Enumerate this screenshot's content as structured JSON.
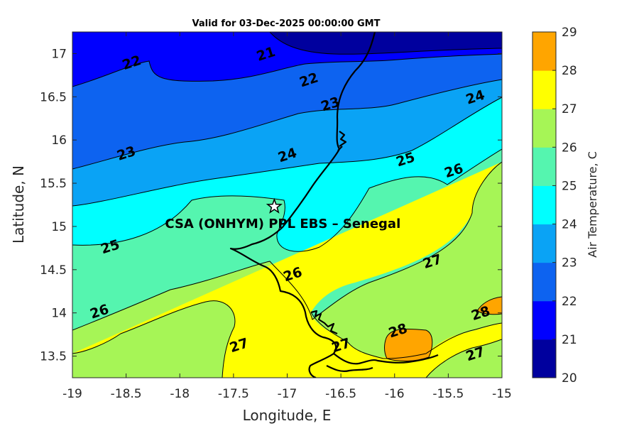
{
  "chart_data": {
    "type": "filled-contour-map",
    "title": "Valid for 03-Dec-2025 00:00:00 GMT",
    "xlabel": "Longitude, E",
    "ylabel": "Latitude, N",
    "xlim": [
      -19,
      -15
    ],
    "ylim": [
      13.25,
      17.25
    ],
    "x_ticks": [
      "-19",
      "-18.5",
      "-18",
      "-17.5",
      "-17",
      "-16.5",
      "-16",
      "-15.5",
      "-15"
    ],
    "y_ticks": [
      "17",
      "16.5",
      "16",
      "15.5",
      "15",
      "14.5",
      "14",
      "13.5"
    ],
    "x_tick_values": [
      -19,
      -18.5,
      -18,
      -17.5,
      -17,
      -16.5,
      -16,
      -15.5,
      -15
    ],
    "y_tick_values": [
      17,
      16.5,
      16,
      15.5,
      15,
      14.5,
      14,
      13.5
    ],
    "colorbar": {
      "label": "Air Temperature, C",
      "levels": [
        20,
        21,
        22,
        23,
        24,
        25,
        26,
        27,
        28,
        29
      ],
      "tick_labels": [
        "20",
        "21",
        "22",
        "23",
        "24",
        "25",
        "26",
        "27",
        "28",
        "29"
      ],
      "colors": [
        "#00009e",
        "#0000ff",
        "#0d63f0",
        "#0aa3f5",
        "#00ffff",
        "#55f5af",
        "#a6f556",
        "#ffff00",
        "#ffa500",
        "#ff5500"
      ]
    },
    "contour_labels": [
      {
        "text": "21",
        "lon": -17.2,
        "lat": 17.0
      },
      {
        "text": "22",
        "lon": -18.45,
        "lat": 16.9
      },
      {
        "text": "22",
        "lon": -16.8,
        "lat": 16.7
      },
      {
        "text": "23",
        "lon": -16.6,
        "lat": 16.42
      },
      {
        "text": "24",
        "lon": -15.25,
        "lat": 16.5
      },
      {
        "text": "23",
        "lon": -18.5,
        "lat": 15.85
      },
      {
        "text": "24",
        "lon": -17.0,
        "lat": 15.83
      },
      {
        "text": "25",
        "lon": -15.9,
        "lat": 15.78
      },
      {
        "text": "26",
        "lon": -15.45,
        "lat": 15.65
      },
      {
        "text": "25",
        "lon": -18.65,
        "lat": 14.77
      },
      {
        "text": "27",
        "lon": -15.65,
        "lat": 14.6
      },
      {
        "text": "26",
        "lon": -16.95,
        "lat": 14.45
      },
      {
        "text": "26",
        "lon": -18.75,
        "lat": 14.02
      },
      {
        "text": "28",
        "lon": -15.2,
        "lat": 14.0
      },
      {
        "text": "28",
        "lon": -15.97,
        "lat": 13.8
      },
      {
        "text": "27",
        "lon": -16.5,
        "lat": 13.63
      },
      {
        "text": "27",
        "lon": -17.45,
        "lat": 13.63
      },
      {
        "text": "27",
        "lon": -15.25,
        "lat": 13.53
      }
    ],
    "site": {
      "label": "CSA (ONHYM) PPL EBS  – Senegal",
      "lon": -17.12,
      "lat": 15.23
    }
  }
}
